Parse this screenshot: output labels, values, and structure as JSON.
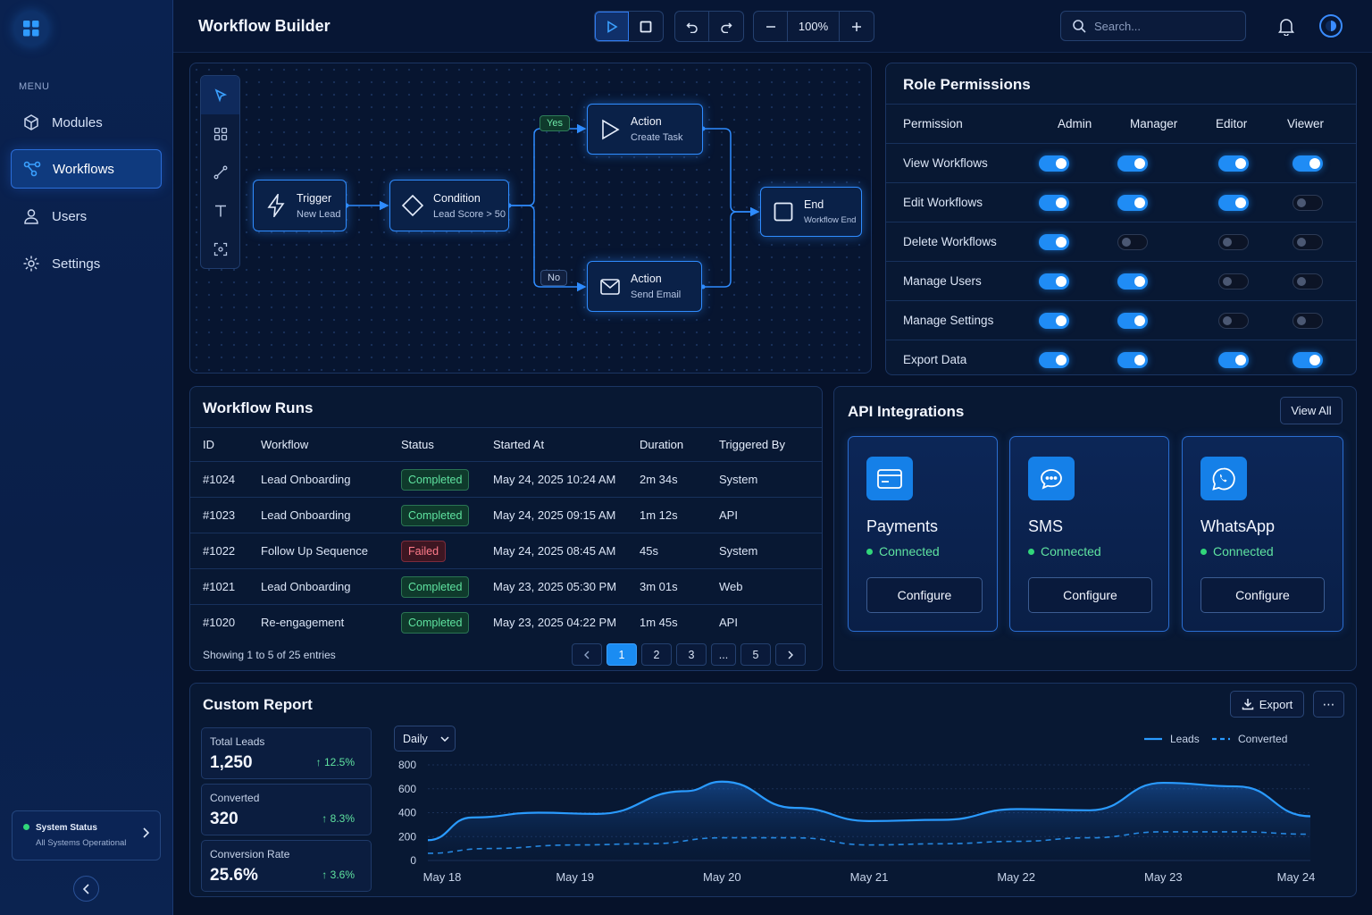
{
  "sidebar": {
    "menu_title": "MENU",
    "items": [
      {
        "label": "Modules",
        "icon": "cube-icon"
      },
      {
        "label": "Workflows",
        "icon": "workflow-icon",
        "active": true
      },
      {
        "label": "Users",
        "icon": "user-icon"
      },
      {
        "label": "Settings",
        "icon": "gear-icon"
      }
    ],
    "status": {
      "title": "System Status",
      "text": "All Systems Operational"
    }
  },
  "header": {
    "title": "Workflow Builder",
    "zoom": "100%",
    "search_placeholder": "Search..."
  },
  "canvas": {
    "nodes": {
      "trigger": {
        "title": "Trigger",
        "sub": "New Lead"
      },
      "condition": {
        "title": "Condition",
        "sub": "Lead Score > 50"
      },
      "action1": {
        "title": "Action",
        "sub": "Create Task"
      },
      "action2": {
        "title": "Action",
        "sub": "Send Email"
      },
      "end": {
        "title": "End",
        "sub": "Workflow End"
      }
    },
    "yes_label": "Yes",
    "no_label": "No"
  },
  "permissions": {
    "title": "Role Permissions",
    "columns": [
      "Permission",
      "Admin",
      "Manager",
      "Editor",
      "Viewer"
    ],
    "rows": [
      {
        "label": "View Workflows",
        "values": [
          true,
          true,
          true,
          true
        ]
      },
      {
        "label": "Edit Workflows",
        "values": [
          true,
          true,
          true,
          false
        ]
      },
      {
        "label": "Delete Workflows",
        "values": [
          true,
          false,
          false,
          false
        ]
      },
      {
        "label": "Manage Users",
        "values": [
          true,
          true,
          false,
          false
        ]
      },
      {
        "label": "Manage Settings",
        "values": [
          true,
          true,
          false,
          false
        ]
      },
      {
        "label": "Export Data",
        "values": [
          true,
          true,
          true,
          true
        ]
      }
    ]
  },
  "runs": {
    "title": "Workflow Runs",
    "columns": [
      "ID",
      "Workflow",
      "Status",
      "Started At",
      "Duration",
      "Triggered By"
    ],
    "rows": [
      [
        "#1024",
        "Lead Onboarding",
        "Completed",
        "May 24, 2025 10:24 AM",
        "2m 34s",
        "System"
      ],
      [
        "#1023",
        "Lead Onboarding",
        "Completed",
        "May 24, 2025 09:15 AM",
        "1m 12s",
        "API"
      ],
      [
        "#1022",
        "Follow Up Sequence",
        "Failed",
        "May 24, 2025 08:45 AM",
        "45s",
        "System"
      ],
      [
        "#1021",
        "Lead Onboarding",
        "Completed",
        "May 23, 2025 05:30 PM",
        "3m 01s",
        "Web"
      ],
      [
        "#1020",
        "Re-engagement",
        "Completed",
        "May 23, 2025 04:22 PM",
        "1m 45s",
        "API"
      ]
    ],
    "footer": "Showing 1 to 5 of 25 entries",
    "pages": [
      "1",
      "2",
      "3",
      "...",
      "5"
    ]
  },
  "api": {
    "title": "API Integrations",
    "view_all": "View All",
    "cards": [
      {
        "name": "Payments",
        "status": "Connected",
        "button": "Configure",
        "icon": "credit-card-icon"
      },
      {
        "name": "SMS",
        "status": "Connected",
        "button": "Configure",
        "icon": "chat-bubble-icon"
      },
      {
        "name": "WhatsApp",
        "status": "Connected",
        "button": "Configure",
        "icon": "whatsapp-icon"
      }
    ]
  },
  "report": {
    "title": "Custom Report",
    "export": "Export",
    "period": "Daily",
    "stats": [
      {
        "label": "Total Leads",
        "value": "1,250",
        "change": "12.5%"
      },
      {
        "label": "Converted",
        "value": "320",
        "change": "8.3%"
      },
      {
        "label": "Conversion Rate",
        "value": "25.6%",
        "change": "3.6%"
      }
    ]
  },
  "chart_data": {
    "type": "area",
    "x": [
      "May 18",
      "May 19",
      "May 20",
      "May 21",
      "May 22",
      "May 23",
      "May 24"
    ],
    "ylim": [
      0,
      800
    ],
    "yticks": [
      0,
      200,
      400,
      600,
      800
    ],
    "grid": true,
    "legend_position": "top-right",
    "series": [
      {
        "name": "Leads",
        "color": "#2a9bff",
        "style": "solid",
        "points": [
          [
            0,
            170
          ],
          [
            0.3,
            360
          ],
          [
            0.75,
            400
          ],
          [
            1.15,
            390
          ],
          [
            1.75,
            580
          ],
          [
            2.0,
            660
          ],
          [
            2.5,
            440
          ],
          [
            3.0,
            330
          ],
          [
            3.5,
            340
          ],
          [
            4.0,
            430
          ],
          [
            4.5,
            420
          ],
          [
            5.0,
            650
          ],
          [
            5.5,
            620
          ],
          [
            6.0,
            370
          ]
        ]
      },
      {
        "name": "Converted",
        "color": "#2a9bff",
        "style": "dashed",
        "points": [
          [
            0,
            60
          ],
          [
            0.4,
            100
          ],
          [
            1.0,
            130
          ],
          [
            1.5,
            140
          ],
          [
            2.0,
            190
          ],
          [
            2.5,
            190
          ],
          [
            3.0,
            130
          ],
          [
            3.5,
            140
          ],
          [
            4.0,
            160
          ],
          [
            4.5,
            190
          ],
          [
            5.0,
            240
          ],
          [
            5.5,
            240
          ],
          [
            6.0,
            220
          ]
        ]
      }
    ]
  }
}
